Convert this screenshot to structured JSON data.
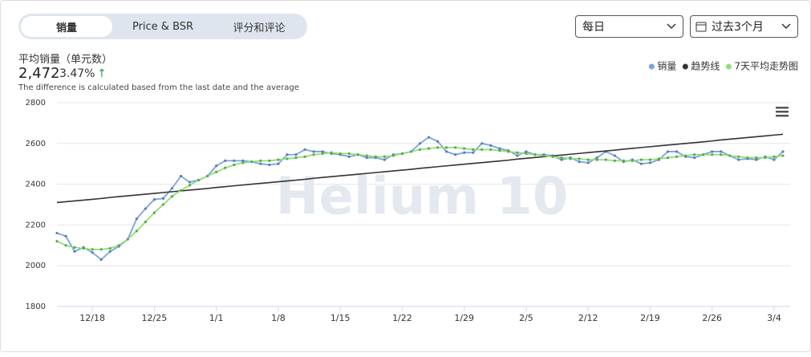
{
  "tabs": [
    "销量",
    "Price & BSR",
    "评分和评论"
  ],
  "controls": {
    "interval": "每日",
    "range": "过去3个月"
  },
  "summary": {
    "label": "平均销量（单元数）",
    "value": "2,472",
    "change": "3.47%",
    "note": "The difference is calculated based from the last date and the average"
  },
  "watermark": "Helium 10",
  "chart_data": {
    "type": "line",
    "categories": [
      null,
      null,
      null,
      null,
      "12/18",
      null,
      null,
      null,
      null,
      null,
      null,
      "12/25",
      null,
      null,
      null,
      null,
      null,
      null,
      "1/1",
      null,
      null,
      null,
      null,
      null,
      null,
      "1/8",
      null,
      null,
      null,
      null,
      null,
      null,
      "1/15",
      null,
      null,
      null,
      null,
      null,
      null,
      "1/22",
      null,
      null,
      null,
      null,
      null,
      null,
      "1/29",
      null,
      null,
      null,
      null,
      null,
      null,
      "2/5",
      null,
      null,
      null,
      null,
      null,
      null,
      "2/12",
      null,
      null,
      null,
      null,
      null,
      null,
      "2/19",
      null,
      null,
      null,
      null,
      null,
      null,
      "2/26",
      null,
      null,
      null,
      null,
      null,
      null,
      "3/4",
      null
    ],
    "series": [
      {
        "name": "销量",
        "color": "#7ba4dc",
        "markers": true,
        "values": [
          2160,
          2145,
          2070,
          2090,
          2065,
          2030,
          2070,
          2095,
          2130,
          2230,
          2280,
          2325,
          2330,
          2380,
          2440,
          2410,
          2420,
          2440,
          2490,
          2515,
          2515,
          2515,
          2510,
          2500,
          2495,
          2500,
          2545,
          2545,
          2570,
          2560,
          2560,
          2550,
          2545,
          2535,
          2545,
          2530,
          2530,
          2520,
          2545,
          2550,
          2560,
          2600,
          2630,
          2610,
          2560,
          2545,
          2555,
          2555,
          2600,
          2590,
          2575,
          2565,
          2540,
          2560,
          2545,
          2545,
          2540,
          2520,
          2530,
          2510,
          2505,
          2530,
          2560,
          2540,
          2510,
          2520,
          2500,
          2505,
          2520,
          2560,
          2560,
          2535,
          2530,
          2545,
          2560,
          2560,
          2540,
          2520,
          2525,
          2520,
          2535,
          2520,
          2560
        ]
      },
      {
        "name": "趋势线",
        "color": "#333333",
        "markers": false,
        "values": [
          2310,
          2314,
          2318,
          2322,
          2326,
          2330,
          2335,
          2339,
          2343,
          2347,
          2351,
          2355,
          2359,
          2363,
          2367,
          2371,
          2375,
          2379,
          2384,
          2388,
          2392,
          2396,
          2400,
          2404,
          2408,
          2412,
          2416,
          2420,
          2424,
          2429,
          2433,
          2437,
          2441,
          2445,
          2449,
          2453,
          2457,
          2461,
          2465,
          2469,
          2473,
          2478,
          2482,
          2486,
          2490,
          2494,
          2498,
          2502,
          2506,
          2510,
          2514,
          2518,
          2523,
          2527,
          2531,
          2535,
          2539,
          2543,
          2547,
          2551,
          2555,
          2559,
          2563,
          2567,
          2572,
          2576,
          2580,
          2584,
          2588,
          2592,
          2596,
          2600,
          2604,
          2608,
          2612,
          2617,
          2621,
          2625,
          2629,
          2633,
          2637,
          2641,
          2645
        ]
      },
      {
        "name": "7天平均走势图",
        "color": "#8de07a",
        "markers": true,
        "values": [
          2120,
          2100,
          2090,
          2085,
          2080,
          2080,
          2085,
          2100,
          2130,
          2170,
          2215,
          2260,
          2300,
          2340,
          2370,
          2395,
          2420,
          2440,
          2460,
          2480,
          2495,
          2505,
          2510,
          2515,
          2515,
          2520,
          2525,
          2530,
          2535,
          2545,
          2550,
          2555,
          2550,
          2550,
          2545,
          2540,
          2535,
          2535,
          2540,
          2550,
          2560,
          2570,
          2575,
          2580,
          2580,
          2580,
          2575,
          2570,
          2570,
          2570,
          2565,
          2560,
          2555,
          2550,
          2545,
          2540,
          2535,
          2530,
          2525,
          2525,
          2520,
          2520,
          2520,
          2515,
          2515,
          2515,
          2520,
          2520,
          2525,
          2530,
          2535,
          2540,
          2545,
          2545,
          2545,
          2545,
          2540,
          2535,
          2530,
          2530,
          2530,
          2535,
          2540
        ]
      }
    ],
    "ylim": [
      1800,
      2800
    ],
    "yticks": [
      1800,
      2000,
      2200,
      2400,
      2600,
      2800
    ],
    "grid": true,
    "legend": "top-right"
  }
}
